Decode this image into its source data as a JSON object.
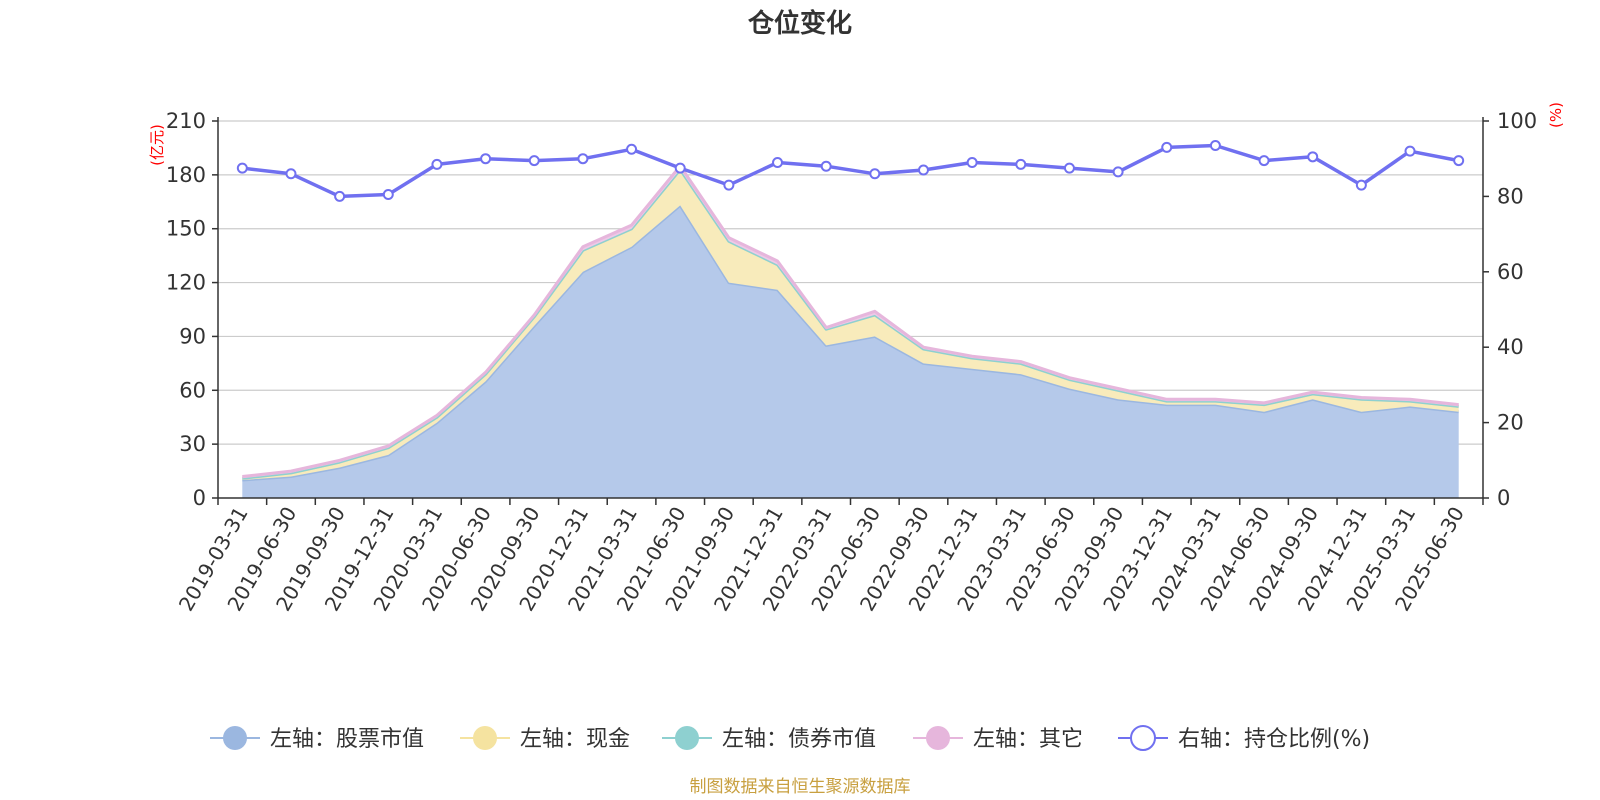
{
  "chart_data": {
    "type": "area",
    "title": "仓位变化",
    "left_axis_unit": "(亿元)",
    "right_axis_unit": "(%)",
    "ylim_left": [
      0,
      210
    ],
    "yticks_left": [
      0,
      30,
      60,
      90,
      120,
      150,
      180,
      210
    ],
    "ylim_right": [
      0,
      100
    ],
    "yticks_right": [
      0,
      20,
      40,
      60,
      80,
      100
    ],
    "grid": true,
    "legend_position": "bottom",
    "categories": [
      "2019-03-31",
      "2019-06-30",
      "2019-09-30",
      "2019-12-31",
      "2020-03-31",
      "2020-06-30",
      "2020-09-30",
      "2020-12-31",
      "2021-03-31",
      "2021-06-30",
      "2021-09-30",
      "2021-12-31",
      "2022-03-31",
      "2022-06-30",
      "2022-09-30",
      "2022-12-31",
      "2023-03-31",
      "2023-06-30",
      "2023-09-30",
      "2023-12-31",
      "2024-03-31",
      "2024-06-30",
      "2024-09-30",
      "2024-12-31",
      "2025-03-31",
      "2025-06-30"
    ],
    "series": [
      {
        "name": "左轴：股票市值",
        "axis": "left",
        "stack": true,
        "color": "#9bb7e0",
        "fill": "#b5c9ea",
        "values": [
          10,
          12,
          17,
          24,
          42,
          65,
          96,
          126,
          140,
          163,
          120,
          116,
          85,
          90,
          75,
          72,
          69,
          61,
          55,
          52,
          52,
          48,
          55,
          48,
          51,
          48
        ]
      },
      {
        "name": "左轴：现金",
        "axis": "left",
        "stack": true,
        "color": "#f5e3a0",
        "fill": "#f8ebbb",
        "values": [
          1,
          2,
          3,
          4,
          3,
          4,
          5,
          12,
          10,
          20,
          23,
          14,
          9,
          12,
          8,
          6,
          6,
          5,
          5,
          2,
          2,
          4,
          3,
          7,
          3,
          3
        ]
      },
      {
        "name": "左轴：债券市值",
        "axis": "left",
        "stack": true,
        "color": "#8ed0d0",
        "fill": "#a9dcdc",
        "values": [
          0,
          0,
          0,
          0,
          0,
          0,
          0,
          0,
          0,
          0,
          0,
          0,
          0,
          0,
          0,
          0,
          0,
          0,
          0,
          0,
          0,
          0,
          0,
          0,
          0,
          0
        ]
      },
      {
        "name": "左轴：其它",
        "axis": "left",
        "stack": true,
        "color": "#e6b6dc",
        "fill": "#eec9e7",
        "values": [
          1,
          1,
          1,
          1,
          1,
          1,
          1,
          2,
          2,
          2,
          2,
          2,
          1,
          2,
          1,
          1,
          1,
          1,
          1,
          1,
          1,
          1,
          1,
          1,
          1,
          1
        ]
      },
      {
        "name": "右轴：持仓比例(%)",
        "axis": "right",
        "stack": false,
        "color": "#7070f0",
        "values": [
          87.5,
          86,
          80,
          80.5,
          88.5,
          90,
          89.5,
          90,
          92.5,
          87.5,
          83,
          89,
          88,
          86,
          87,
          89,
          88.5,
          87.5,
          86.5,
          93,
          93.5,
          89.5,
          90.5,
          83,
          92,
          89.5
        ]
      }
    ]
  },
  "source_text": "制图数据来自恒生聚源数据库"
}
